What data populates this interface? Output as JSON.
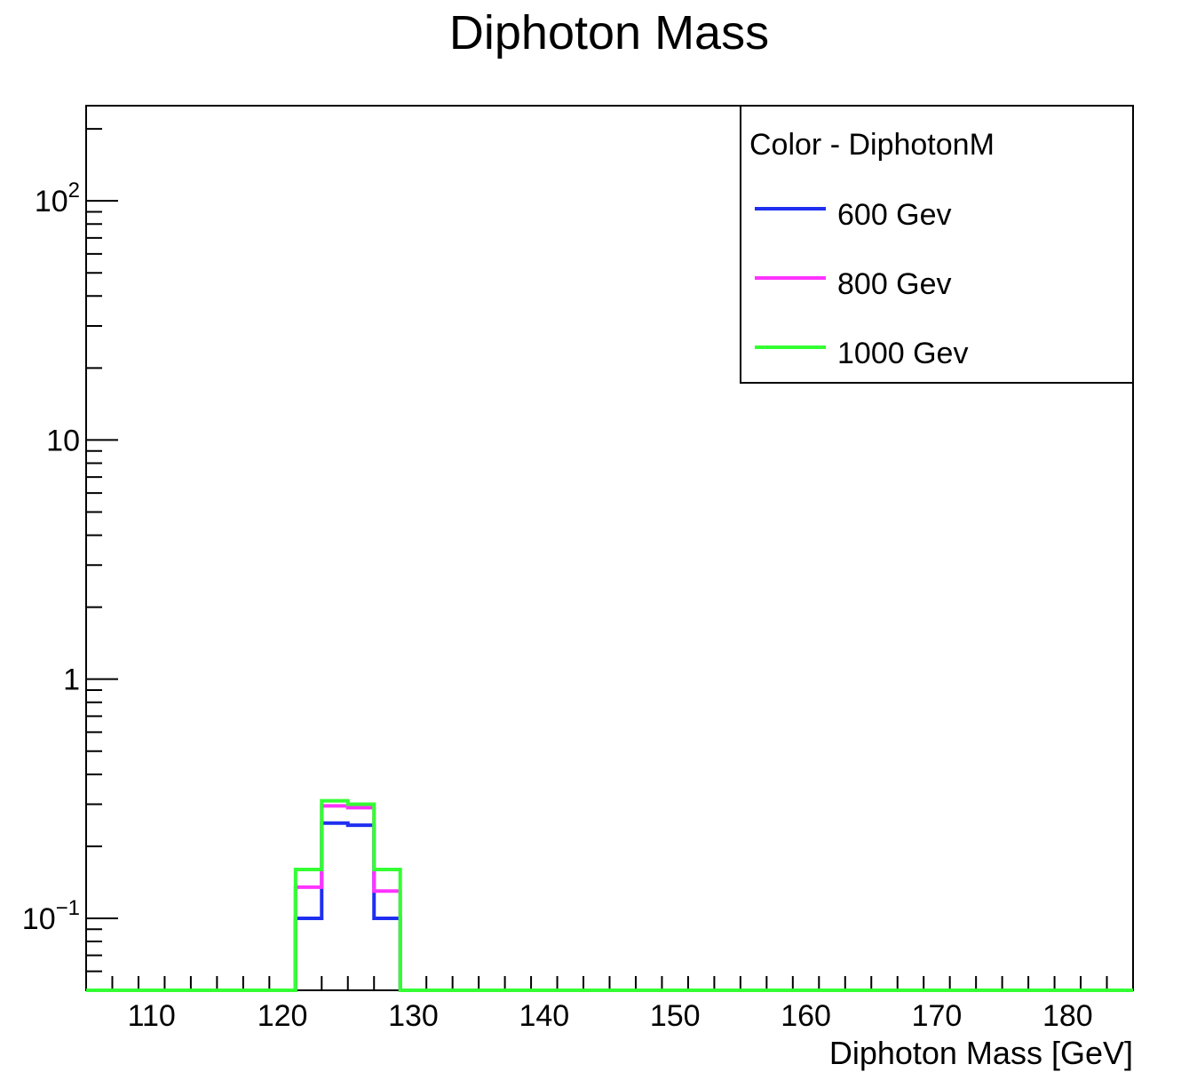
{
  "chart_data": {
    "type": "histogram",
    "title": "Diphoton Mass",
    "xlabel": "Diphoton Mass [GeV]",
    "ylabel": "",
    "xlim": [
      105,
      185
    ],
    "ylim": [
      0.05,
      250
    ],
    "yscale": "log",
    "x_ticks": [
      "110",
      "120",
      "130",
      "140",
      "150",
      "160",
      "170",
      "180"
    ],
    "y_ticks": [
      {
        "base": "10",
        "exp": "−1"
      },
      {
        "base": "1",
        "exp": ""
      },
      {
        "base": "10",
        "exp": ""
      },
      {
        "base": "10",
        "exp": "2"
      }
    ],
    "bin_edges": [
      105,
      121,
      123,
      125,
      127,
      129,
      185
    ],
    "series": [
      {
        "name": "600 Gev",
        "color": "#1f2ff0",
        "values": [
          0,
          0.1,
          0.25,
          0.245,
          0.1,
          0
        ]
      },
      {
        "name": "800 Gev",
        "color": "#ff33ff",
        "values": [
          0,
          0.135,
          0.295,
          0.29,
          0.13,
          0
        ]
      },
      {
        "name": "1000 Gev",
        "color": "#33ff33",
        "values": [
          0,
          0.16,
          0.31,
          0.3,
          0.16,
          0
        ]
      }
    ],
    "legend": {
      "title": "Color - DiphotonM",
      "position": "top-right"
    },
    "grid": false
  }
}
